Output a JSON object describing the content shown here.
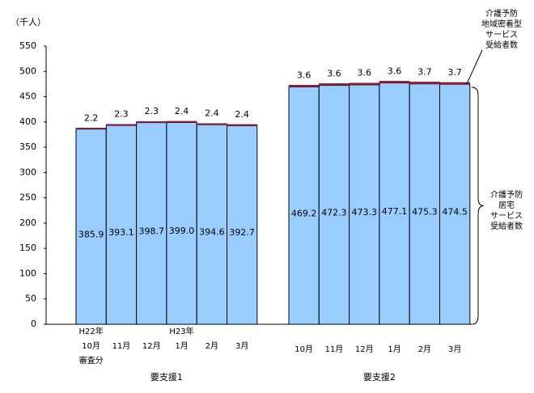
{
  "chart_data": {
    "type": "stacked-bar",
    "y_label": "（千人）",
    "ylim": [
      0,
      550
    ],
    "yticks": [
      0,
      50,
      100,
      150,
      200,
      250,
      300,
      350,
      400,
      450,
      500,
      550
    ],
    "groups": [
      {
        "name": "要支援1",
        "categories": [
          "H22年\n10月\n審査分",
          "11月",
          "12月",
          "H23年\n1月",
          "2月",
          "3月"
        ]
      },
      {
        "name": "要支援2",
        "categories": [
          "10月",
          "11月",
          "12月",
          "1月",
          "2月",
          "3月"
        ]
      }
    ],
    "series": [
      {
        "name": "介護予防\n居宅\nサービス\n受給者数",
        "color": "#99ccff",
        "values": [
          385.9,
          393.1,
          398.7,
          399.0,
          394.6,
          392.7,
          469.2,
          472.3,
          473.3,
          477.1,
          475.3,
          474.5
        ],
        "value_labels": [
          "385.9",
          "393.1",
          "398.7",
          "399.0",
          "394.6",
          "392.7",
          "469.2",
          "472.3",
          "473.3",
          "477.1",
          "475.3",
          "474.5"
        ]
      },
      {
        "name": "介護予防\n地域密着型\nサービス\n受給者数",
        "color": "#8b1a3a",
        "values": [
          2.2,
          2.3,
          2.3,
          2.4,
          2.4,
          2.4,
          3.6,
          3.6,
          3.6,
          3.6,
          3.7,
          3.7
        ]
      }
    ]
  }
}
